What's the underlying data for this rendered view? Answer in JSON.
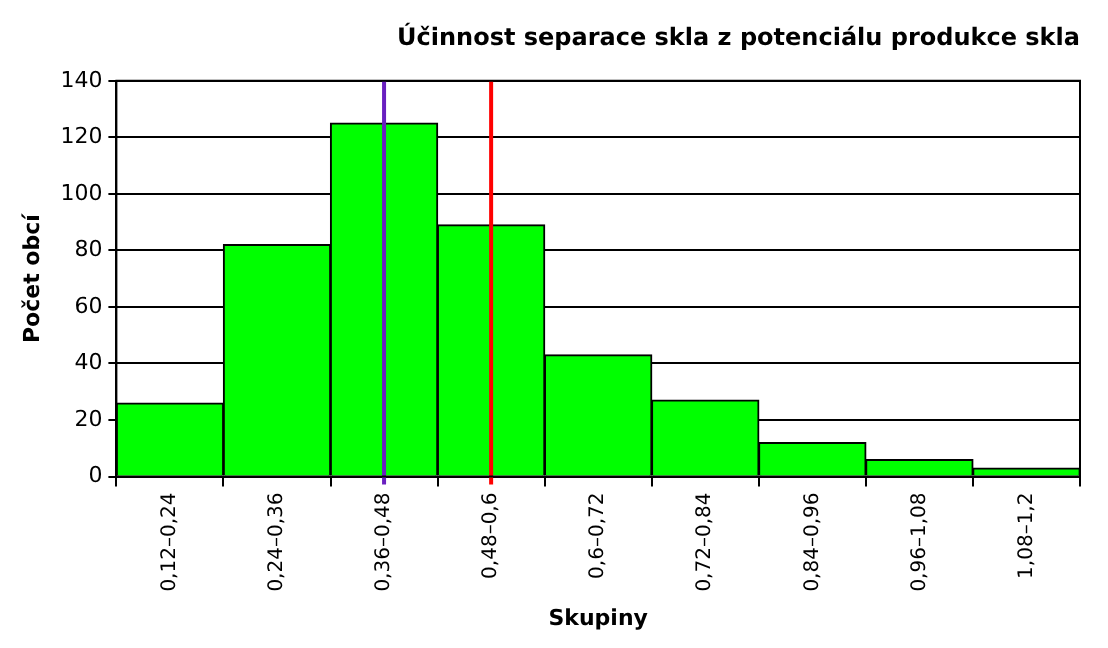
{
  "chart_data": {
    "type": "bar",
    "title": "Účinnost separace skla z potenciálu produkce skla",
    "xlabel": "Skupiny",
    "ylabel": "Počet obcí",
    "categories": [
      "0,12–0,24",
      "0,24–0,36",
      "0,36–0,48",
      "0,48–0,6",
      "0,6–0,72",
      "0,72–0,84",
      "0,84–0,96",
      "0,96–1,08",
      "1,08–1,2"
    ],
    "values": [
      26,
      82,
      125,
      89,
      43,
      27,
      12,
      6,
      3
    ],
    "color": "#00ff00",
    "ylim": [
      0,
      140
    ],
    "yticks": [
      0,
      20,
      40,
      60,
      80,
      100,
      120,
      140
    ],
    "grid": "y",
    "legend": false,
    "ref_lines": [
      {
        "axis": "x",
        "value": "0,36–0,48",
        "color": "#6a1fc0"
      },
      {
        "axis": "x",
        "value": "0,48–0,6",
        "color": "#ff0000"
      }
    ]
  }
}
